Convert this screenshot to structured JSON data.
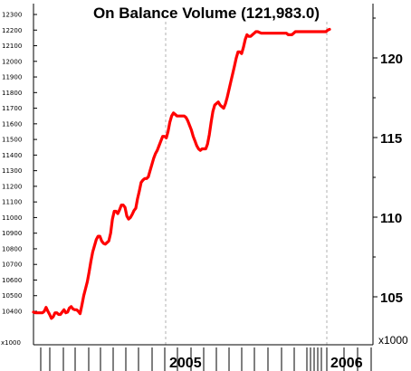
{
  "chart_data": {
    "type": "line",
    "title": "On Balance Volume (121,983.0)",
    "grid": "vertical dashed lines at year boundaries",
    "left_axis": {
      "unit_label": "x1000",
      "ticks": [
        10400,
        10500,
        10600,
        10700,
        10800,
        10900,
        11000,
        11100,
        11200,
        11300,
        11400,
        11500,
        11600,
        11700,
        11800,
        11900,
        12000,
        12100,
        12200,
        12300
      ]
    },
    "right_axis": {
      "unit_label": "x1000",
      "ticks": [
        "105",
        "110",
        "115",
        "120"
      ]
    },
    "x_axis": {
      "ticks": [
        "2005",
        "2006"
      ]
    },
    "series": [
      {
        "color": "#ff0000",
        "x": [
          0,
          1,
          2,
          3,
          4,
          5,
          6,
          7,
          8,
          9,
          10,
          11,
          12,
          13,
          14,
          15,
          16,
          17,
          18,
          19,
          20,
          21,
          22,
          23,
          24,
          25,
          26,
          27,
          28,
          29,
          30,
          31,
          32,
          33,
          34,
          35,
          36,
          37,
          38,
          39,
          40,
          41,
          42,
          43,
          44,
          45,
          46,
          47,
          48,
          49,
          50,
          51,
          52,
          53,
          54,
          55,
          56,
          57,
          58,
          59,
          60,
          61,
          62,
          63,
          64,
          65,
          66,
          67,
          68,
          69,
          70,
          71,
          72,
          73,
          74,
          75,
          76,
          77,
          78,
          79,
          80,
          81,
          82,
          83,
          84,
          85,
          86,
          87,
          88,
          89,
          90,
          91,
          92,
          93,
          94,
          95,
          96,
          97,
          98,
          99,
          100,
          101,
          102,
          103,
          104,
          105,
          106,
          107,
          108,
          109,
          110,
          111,
          112,
          113,
          114,
          115,
          116,
          117,
          118,
          119,
          120,
          121,
          122,
          123,
          124,
          125,
          126,
          127,
          128,
          129,
          130,
          131,
          132,
          133,
          134,
          135,
          136,
          137,
          138,
          139,
          140,
          141,
          142,
          143,
          144,
          145,
          146,
          147,
          148,
          149,
          150,
          151,
          152,
          153,
          154,
          155,
          156,
          157,
          158,
          159,
          160,
          161,
          162,
          163,
          164,
          165
        ],
        "values": [
          10395,
          10390,
          10390,
          10390,
          10390,
          10390,
          10400,
          10425,
          10400,
          10380,
          10355,
          10365,
          10390,
          10390,
          10380,
          10380,
          10395,
          10410,
          10390,
          10395,
          10420,
          10430,
          10415,
          10410,
          10410,
          10400,
          10385,
          10440,
          10500,
          10545,
          10590,
          10650,
          10720,
          10780,
          10820,
          10860,
          10880,
          10880,
          10850,
          10835,
          10830,
          10840,
          10850,
          10900,
          10990,
          11040,
          11040,
          11025,
          11050,
          11080,
          11080,
          11065,
          11010,
          10990,
          11000,
          11020,
          11045,
          11060,
          11120,
          11170,
          11225,
          11240,
          11250,
          11250,
          11260,
          11300,
          11340,
          11380,
          11410,
          11430,
          11460,
          11490,
          11520,
          11520,
          11510,
          11550,
          11610,
          11650,
          11670,
          11660,
          11650,
          11650,
          11650,
          11650,
          11650,
          11640,
          11620,
          11590,
          11560,
          11520,
          11490,
          11460,
          11440,
          11430,
          11440,
          11440,
          11440,
          11470,
          11530,
          11610,
          11680,
          11720,
          11730,
          11740,
          11720,
          11710,
          11700,
          11730,
          11770,
          11820,
          11870,
          11920,
          11970,
          12020,
          12060,
          12060,
          12050,
          12090,
          12140,
          12170,
          12160,
          12160,
          12170,
          12180,
          12190,
          12190,
          12185,
          12180,
          12180,
          12180,
          12180,
          12180,
          12180,
          12180,
          12180,
          12180,
          12180,
          12180,
          12180,
          12180,
          12180,
          12180,
          12170,
          12170,
          12170,
          12180,
          12190,
          12190,
          12190,
          12190,
          12190,
          12190,
          12190,
          12190,
          12190,
          12190,
          12190,
          12190,
          12190,
          12190,
          12190,
          12190,
          12190,
          12190,
          12200,
          12205
        ]
      }
    ]
  }
}
